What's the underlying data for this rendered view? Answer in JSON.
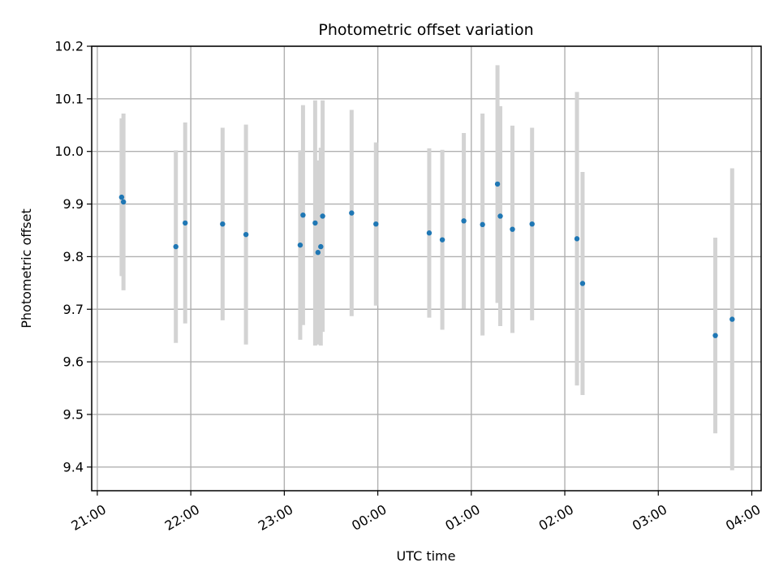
{
  "chart_data": {
    "type": "scatter",
    "title": "Photometric offset variation",
    "xlabel": "UTC time",
    "ylabel": "Photometric offset",
    "grid": true,
    "x_unit": "hours relative to 00:00 UTC",
    "xlim": [
      -3.06,
      4.1
    ],
    "ylim": [
      9.355,
      10.2
    ],
    "xticks": [
      -3,
      -2,
      -1,
      0,
      1,
      2,
      3,
      4
    ],
    "xtick_labels": [
      "21:00",
      "22:00",
      "23:00",
      "00:00",
      "01:00",
      "02:00",
      "03:00",
      "04:00"
    ],
    "yticks": [
      9.4,
      9.5,
      9.6,
      9.7,
      9.8,
      9.9,
      10.0,
      10.1,
      10.2
    ],
    "ytick_labels": [
      "9.4",
      "9.5",
      "9.6",
      "9.7",
      "9.8",
      "9.9",
      "10.0",
      "10.1",
      "10.2"
    ],
    "colors": {
      "point": "#1f77b4",
      "errorbar": "#d3d3d3",
      "grid": "#b0b0b0"
    },
    "series": [
      {
        "points": [
          {
            "x": -2.74,
            "y": 9.913,
            "yerr": 0.15
          },
          {
            "x": -2.72,
            "y": 9.904,
            "yerr": 0.168
          },
          {
            "x": -2.16,
            "y": 9.819,
            "yerr": 0.183
          },
          {
            "x": -2.06,
            "y": 9.864,
            "yerr": 0.191
          },
          {
            "x": -1.66,
            "y": 9.862,
            "yerr": 0.183
          },
          {
            "x": -1.41,
            "y": 9.842,
            "yerr": 0.209
          },
          {
            "x": -0.83,
            "y": 9.822,
            "yerr": 0.18
          },
          {
            "x": -0.8,
            "y": 9.879,
            "yerr": 0.209
          },
          {
            "x": -0.67,
            "y": 9.864,
            "yerr": 0.233
          },
          {
            "x": -0.64,
            "y": 9.808,
            "yerr": 0.175
          },
          {
            "x": -0.61,
            "y": 9.819,
            "yerr": 0.188
          },
          {
            "x": -0.59,
            "y": 9.877,
            "yerr": 0.22
          },
          {
            "x": -0.28,
            "y": 9.883,
            "yerr": 0.196
          },
          {
            "x": -0.02,
            "y": 9.862,
            "yerr": 0.155
          },
          {
            "x": 0.55,
            "y": 9.845,
            "yerr": 0.161
          },
          {
            "x": 0.69,
            "y": 9.832,
            "yerr": 0.171
          },
          {
            "x": 0.92,
            "y": 9.868,
            "yerr": 0.167
          },
          {
            "x": 1.12,
            "y": 9.861,
            "yerr": 0.211
          },
          {
            "x": 1.28,
            "y": 9.938,
            "yerr": 0.226
          },
          {
            "x": 1.31,
            "y": 9.877,
            "yerr": 0.209
          },
          {
            "x": 1.44,
            "y": 9.852,
            "yerr": 0.197
          },
          {
            "x": 1.65,
            "y": 9.862,
            "yerr": 0.183
          },
          {
            "x": 2.13,
            "y": 9.834,
            "yerr": 0.279
          },
          {
            "x": 2.19,
            "y": 9.749,
            "yerr": 0.212
          },
          {
            "x": 3.61,
            "y": 9.65,
            "yerr": 0.186
          },
          {
            "x": 3.79,
            "y": 9.681,
            "yerr": 0.287
          }
        ]
      }
    ]
  }
}
